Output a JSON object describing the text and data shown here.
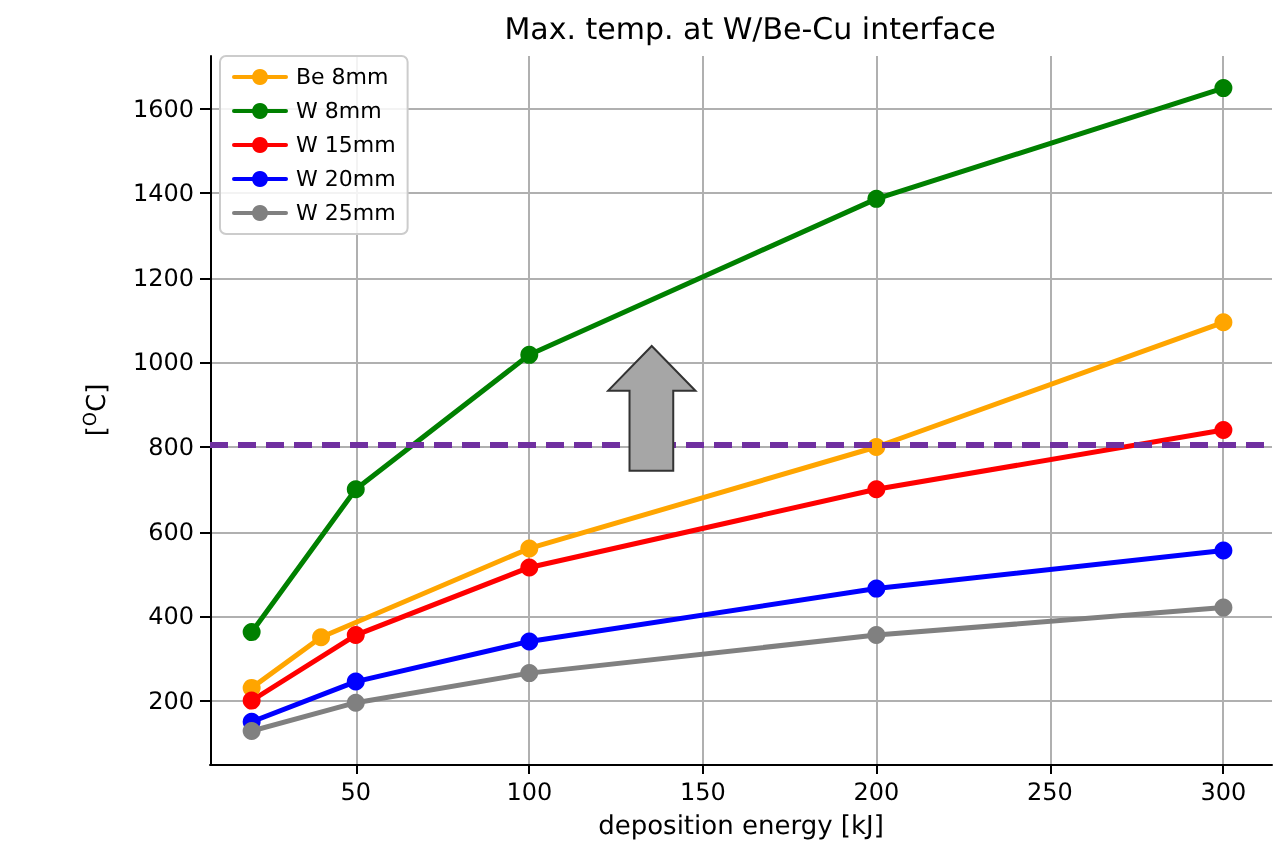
{
  "chart_data": {
    "type": "line",
    "title": "Max. temp. at W/Be-Cu interface",
    "xlabel": "deposition energy [kJ]",
    "ylabel": "[$^{O}$C]",
    "xlim": [
      8,
      314
    ],
    "xticks": [
      50,
      100,
      150,
      200,
      250,
      300
    ],
    "ylim": [
      50,
      1725
    ],
    "yticks": [
      200,
      400,
      600,
      800,
      1000,
      1200,
      1400,
      1600
    ],
    "grid": true,
    "legend": "top left",
    "marker": "circle",
    "line_style": "solid",
    "series": [
      {
        "name": "Be 8mm",
        "color": "#ffa500",
        "x": [
          20,
          40,
          100,
          200,
          300
        ],
        "values": [
          230,
          350,
          560,
          800,
          1095
        ]
      },
      {
        "name": "W 8mm",
        "color": "#008000",
        "x": [
          20,
          50,
          100,
          200,
          300
        ],
        "values": [
          362,
          700,
          1018,
          1387,
          1649
        ]
      },
      {
        "name": "W 15mm",
        "color": "#ff0000",
        "x": [
          20,
          50,
          100,
          200,
          300
        ],
        "values": [
          200,
          355,
          515,
          700,
          840
        ]
      },
      {
        "name": "W 20mm",
        "color": "#0000ff",
        "x": [
          20,
          50,
          100,
          200,
          300
        ],
        "values": [
          150,
          245,
          340,
          465,
          555
        ]
      },
      {
        "name": "W 25mm",
        "color": "#808080",
        "x": [
          20,
          50,
          100,
          200,
          300
        ],
        "values": [
          128,
          195,
          265,
          355,
          420
        ]
      }
    ],
    "ref_lines": [
      {
        "axis": "y",
        "value": 805,
        "color": "#7030a0",
        "line_style": "dashed"
      }
    ]
  }
}
